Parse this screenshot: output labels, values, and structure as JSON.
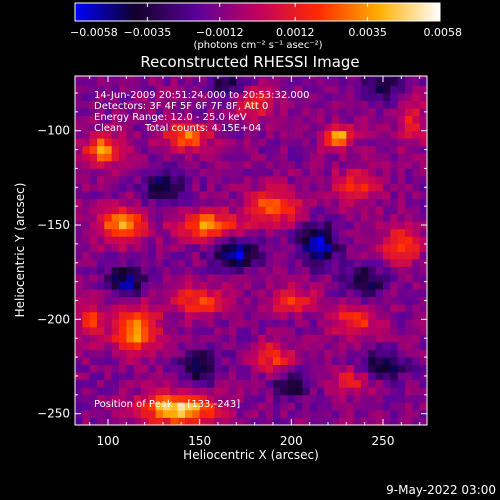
{
  "chart_data": {
    "type": "heatmap",
    "title": "Reconstructed RHESSI Image",
    "xlabel": "Heliocentric X (arcsec)",
    "ylabel": "Heliocentric Y (arcsec)",
    "xlim": [
      82,
      274
    ],
    "ylim": [
      -256,
      -71
    ],
    "x_ticks": [
      100,
      150,
      200,
      250
    ],
    "y_ticks": [
      -100,
      -150,
      -200,
      -250
    ],
    "x_tick_labels": [
      "100",
      "150",
      "200",
      "250"
    ],
    "y_tick_labels": [
      "−100",
      "−150",
      "−200",
      "−250"
    ],
    "colorbar": {
      "min": -0.0058,
      "max": 0.0058,
      "tick_values": [
        -0.0058,
        -0.0035,
        -0.0012,
        0.0012,
        0.0035,
        0.0058
      ],
      "tick_labels": [
        "−0.0058",
        "−0.0035",
        "−0.0012",
        "0.0012",
        "0.0035",
        "0.0058"
      ],
      "unit_label": "(photons cm⁻² s⁻¹ asec⁻²)",
      "colors": [
        "#0000ff",
        "#12002a",
        "#5b009a",
        "#c1005f",
        "#ff2a00",
        "#ffb000",
        "#ffffff"
      ]
    },
    "annotations": {
      "time_range": "14-Jun-2009 20:51:24.000 to 20:53:32.000",
      "detectors": "Detectors: 3F 4F 5F 6F 7F 8F, Att 0",
      "energy_range": "Energy Range: 12.0 - 25.0 keV",
      "method": "Clean",
      "total_counts": "Total counts: 4.15E+04",
      "peak_position": "Position of Peak = [133,-243]"
    },
    "peak": {
      "x": 133,
      "y": -243
    },
    "blobs": [
      {
        "x": 138,
        "y": -247,
        "rx": 20,
        "ry": 8,
        "amp": 0.006
      },
      {
        "x": 115,
        "y": -205,
        "rx": 12,
        "ry": 12,
        "amp": 0.005
      },
      {
        "x": 90,
        "y": -200,
        "rx": 6,
        "ry": 10,
        "amp": 0.003
      },
      {
        "x": 108,
        "y": -150,
        "rx": 12,
        "ry": 9,
        "amp": 0.005
      },
      {
        "x": 155,
        "y": -150,
        "rx": 16,
        "ry": 7,
        "amp": 0.0045
      },
      {
        "x": 190,
        "y": -140,
        "rx": 14,
        "ry": 9,
        "amp": 0.0038
      },
      {
        "x": 97,
        "y": -110,
        "rx": 10,
        "ry": 8,
        "amp": 0.0045
      },
      {
        "x": 143,
        "y": -103,
        "rx": 12,
        "ry": 7,
        "amp": 0.0042
      },
      {
        "x": 225,
        "y": -103,
        "rx": 8,
        "ry": 6,
        "amp": 0.0052
      },
      {
        "x": 235,
        "y": -130,
        "rx": 12,
        "ry": 9,
        "amp": 0.003
      },
      {
        "x": 260,
        "y": -160,
        "rx": 10,
        "ry": 9,
        "amp": 0.0038
      },
      {
        "x": 150,
        "y": -190,
        "rx": 14,
        "ry": 8,
        "amp": 0.0032
      },
      {
        "x": 200,
        "y": -190,
        "rx": 12,
        "ry": 7,
        "amp": 0.003
      },
      {
        "x": 235,
        "y": -200,
        "rx": 12,
        "ry": 8,
        "amp": 0.0032
      },
      {
        "x": 190,
        "y": -220,
        "rx": 10,
        "ry": 8,
        "amp": 0.003
      },
      {
        "x": 235,
        "y": -232,
        "rx": 15,
        "ry": 7,
        "amp": 0.0022
      },
      {
        "x": 180,
        "y": -85,
        "rx": 10,
        "ry": 8,
        "amp": 0.003
      },
      {
        "x": 265,
        "y": -95,
        "rx": 8,
        "ry": 12,
        "amp": 0.0026
      },
      {
        "x": 215,
        "y": -160,
        "rx": 10,
        "ry": 10,
        "amp": -0.0045
      },
      {
        "x": 170,
        "y": -165,
        "rx": 12,
        "ry": 8,
        "amp": -0.004
      },
      {
        "x": 130,
        "y": -130,
        "rx": 10,
        "ry": 8,
        "amp": -0.0035
      },
      {
        "x": 110,
        "y": -180,
        "rx": 10,
        "ry": 8,
        "amp": -0.0038
      },
      {
        "x": 150,
        "y": -225,
        "rx": 10,
        "ry": 8,
        "amp": -0.0036
      },
      {
        "x": 250,
        "y": -225,
        "rx": 12,
        "ry": 8,
        "amp": -0.0034
      },
      {
        "x": 200,
        "y": -235,
        "rx": 10,
        "ry": 6,
        "amp": -0.0032
      },
      {
        "x": 240,
        "y": -180,
        "rx": 10,
        "ry": 8,
        "amp": -0.003
      },
      {
        "x": 165,
        "y": -75,
        "rx": 10,
        "ry": 8,
        "amp": -0.0025
      },
      {
        "x": 250,
        "y": -75,
        "rx": 12,
        "ry": 8,
        "amp": -0.0028
      }
    ]
  },
  "footer": {
    "timestamp": "9-May-2022 03:00"
  }
}
